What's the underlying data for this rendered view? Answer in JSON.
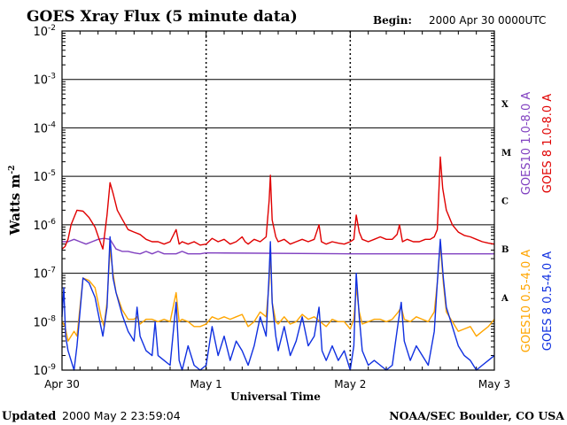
{
  "chart_data": {
    "type": "line",
    "title": "GOES Xray Flux (5 minute data)",
    "begin_label": "Begin:",
    "begin_value": "2000 Apr 30 0000UTC",
    "xlabel": "Universal Time",
    "ylabel_main": "Watts m",
    "ylabel_exp": "-2",
    "y_scale": "log",
    "ylim": [
      1e-09,
      0.01
    ],
    "xlim_hours": [
      0,
      72
    ],
    "x_ticks": [
      {
        "label": "Apr 30",
        "hour": 0
      },
      {
        "label": "May 1",
        "hour": 24
      },
      {
        "label": "May 2",
        "hour": 48
      },
      {
        "label": "May 3",
        "hour": 72
      }
    ],
    "y_ticks": [
      {
        "base": "10",
        "exp": "-2",
        "value": -2
      },
      {
        "base": "10",
        "exp": "-3",
        "value": -3
      },
      {
        "base": "10",
        "exp": "-4",
        "value": -4
      },
      {
        "base": "10",
        "exp": "-5",
        "value": -5
      },
      {
        "base": "10",
        "exp": "-6",
        "value": -6
      },
      {
        "base": "10",
        "exp": "-7",
        "value": -7
      },
      {
        "base": "10",
        "exp": "-8",
        "value": -8
      },
      {
        "base": "10",
        "exp": "-9",
        "value": -9
      }
    ],
    "class_labels": [
      {
        "label": "X",
        "value": -3.5
      },
      {
        "label": "M",
        "value": -4.5
      },
      {
        "label": "C",
        "value": -5.5
      },
      {
        "label": "B",
        "value": -6.5
      },
      {
        "label": "A",
        "value": -7.5
      }
    ],
    "series": [
      {
        "name": "GOES10 1.0-8.0 A",
        "color": "#8040c0",
        "points": [
          [
            0,
            -6.35
          ],
          [
            1,
            -6.35
          ],
          [
            2,
            -6.3
          ],
          [
            3,
            -6.35
          ],
          [
            4,
            -6.4
          ],
          [
            5,
            -6.35
          ],
          [
            6,
            -6.3
          ],
          [
            7,
            -6.28
          ],
          [
            8,
            -6.3
          ],
          [
            9,
            -6.5
          ],
          [
            10,
            -6.55
          ],
          [
            11,
            -6.55
          ],
          [
            12,
            -6.58
          ],
          [
            13,
            -6.6
          ],
          [
            14,
            -6.55
          ],
          [
            15,
            -6.6
          ],
          [
            16,
            -6.55
          ],
          [
            17,
            -6.6
          ],
          [
            18,
            -6.6
          ],
          [
            19,
            -6.6
          ],
          [
            20,
            -6.55
          ],
          [
            21,
            -6.6
          ],
          [
            22,
            -6.6
          ],
          [
            23,
            -6.6
          ],
          [
            24,
            -6.58
          ],
          [
            48,
            -6.6
          ],
          [
            72,
            -6.6
          ]
        ]
      },
      {
        "name": "GOES 8 1.0-8.0 A",
        "color": "#e00000",
        "points": [
          [
            0,
            -6.5
          ],
          [
            0.5,
            -6.45
          ],
          [
            1,
            -6.3
          ],
          [
            1.5,
            -6.0
          ],
          [
            2.5,
            -5.7
          ],
          [
            3.5,
            -5.72
          ],
          [
            4.5,
            -5.85
          ],
          [
            5.5,
            -6.05
          ],
          [
            6.2,
            -6.3
          ],
          [
            6.8,
            -6.5
          ],
          [
            7.5,
            -5.8
          ],
          [
            8,
            -5.13
          ],
          [
            8.5,
            -5.35
          ],
          [
            9.2,
            -5.7
          ],
          [
            10,
            -5.88
          ],
          [
            11,
            -6.1
          ],
          [
            12,
            -6.15
          ],
          [
            13,
            -6.2
          ],
          [
            14,
            -6.3
          ],
          [
            15,
            -6.35
          ],
          [
            16,
            -6.35
          ],
          [
            17,
            -6.4
          ],
          [
            18,
            -6.35
          ],
          [
            19,
            -6.1
          ],
          [
            19.5,
            -6.4
          ],
          [
            20,
            -6.35
          ],
          [
            21,
            -6.4
          ],
          [
            22,
            -6.35
          ],
          [
            23,
            -6.42
          ],
          [
            24,
            -6.4
          ],
          [
            25,
            -6.28
          ],
          [
            26,
            -6.35
          ],
          [
            27,
            -6.3
          ],
          [
            28,
            -6.4
          ],
          [
            29,
            -6.35
          ],
          [
            30,
            -6.25
          ],
          [
            30.5,
            -6.35
          ],
          [
            31,
            -6.4
          ],
          [
            32,
            -6.3
          ],
          [
            33,
            -6.35
          ],
          [
            34,
            -6.25
          ],
          [
            34.5,
            -5.5
          ],
          [
            34.7,
            -4.98
          ],
          [
            35,
            -5.9
          ],
          [
            35.6,
            -6.25
          ],
          [
            36,
            -6.35
          ],
          [
            37,
            -6.3
          ],
          [
            38,
            -6.4
          ],
          [
            39,
            -6.35
          ],
          [
            40,
            -6.3
          ],
          [
            41,
            -6.35
          ],
          [
            42,
            -6.3
          ],
          [
            42.8,
            -6.0
          ],
          [
            43.2,
            -6.35
          ],
          [
            44,
            -6.4
          ],
          [
            45,
            -6.35
          ],
          [
            46,
            -6.38
          ],
          [
            47,
            -6.4
          ],
          [
            48,
            -6.35
          ],
          [
            48.6,
            -6.3
          ],
          [
            49,
            -5.8
          ],
          [
            49.5,
            -6.15
          ],
          [
            50,
            -6.3
          ],
          [
            51,
            -6.35
          ],
          [
            52,
            -6.3
          ],
          [
            53,
            -6.25
          ],
          [
            54,
            -6.3
          ],
          [
            55,
            -6.3
          ],
          [
            55.8,
            -6.2
          ],
          [
            56.2,
            -6.0
          ],
          [
            56.7,
            -6.35
          ],
          [
            57.5,
            -6.3
          ],
          [
            58.5,
            -6.35
          ],
          [
            59.5,
            -6.35
          ],
          [
            60.5,
            -6.3
          ],
          [
            61.3,
            -6.3
          ],
          [
            62,
            -6.25
          ],
          [
            62.5,
            -6.1
          ],
          [
            63,
            -4.6
          ],
          [
            63.4,
            -5.25
          ],
          [
            64,
            -5.7
          ],
          [
            65,
            -6.0
          ],
          [
            66,
            -6.15
          ],
          [
            67,
            -6.22
          ],
          [
            68,
            -6.25
          ],
          [
            69,
            -6.3
          ],
          [
            70,
            -6.35
          ],
          [
            71,
            -6.38
          ],
          [
            72,
            -6.4
          ]
        ]
      },
      {
        "name": "GOES10 0.5-4.0 A",
        "color": "#ffa500",
        "points": [
          [
            0,
            -8.0
          ],
          [
            0.5,
            -8.1
          ],
          [
            1,
            -8.4
          ],
          [
            1.5,
            -8.3
          ],
          [
            2,
            -8.2
          ],
          [
            2.5,
            -8.3
          ],
          [
            3.5,
            -7.1
          ],
          [
            4.5,
            -7.15
          ],
          [
            5.5,
            -7.3
          ],
          [
            6.5,
            -7.9
          ],
          [
            7,
            -8.1
          ],
          [
            7.5,
            -7.6
          ],
          [
            8,
            -6.5
          ],
          [
            8.5,
            -7.0
          ],
          [
            9,
            -7.4
          ],
          [
            10,
            -7.75
          ],
          [
            11,
            -7.95
          ],
          [
            12,
            -7.95
          ],
          [
            12.5,
            -7.9
          ],
          [
            13,
            -8.05
          ],
          [
            14,
            -7.95
          ],
          [
            15,
            -7.95
          ],
          [
            16,
            -8.0
          ],
          [
            17,
            -7.95
          ],
          [
            18,
            -8.0
          ],
          [
            19,
            -7.4
          ],
          [
            19.5,
            -8.0
          ],
          [
            20,
            -7.95
          ],
          [
            21,
            -8.0
          ],
          [
            22,
            -8.1
          ],
          [
            23,
            -8.1
          ],
          [
            24,
            -8.05
          ],
          [
            25,
            -7.9
          ],
          [
            26,
            -7.95
          ],
          [
            27,
            -7.9
          ],
          [
            28,
            -7.95
          ],
          [
            29,
            -7.9
          ],
          [
            30,
            -7.85
          ],
          [
            31,
            -8.1
          ],
          [
            32,
            -8.0
          ],
          [
            33,
            -7.8
          ],
          [
            34,
            -7.9
          ],
          [
            34.5,
            -7.2
          ],
          [
            34.7,
            -6.5
          ],
          [
            35,
            -7.6
          ],
          [
            35.6,
            -8.0
          ],
          [
            36,
            -8.05
          ],
          [
            37,
            -7.9
          ],
          [
            38,
            -8.05
          ],
          [
            39,
            -8.0
          ],
          [
            40,
            -7.85
          ],
          [
            41,
            -7.95
          ],
          [
            42,
            -7.9
          ],
          [
            43,
            -8.0
          ],
          [
            44,
            -8.1
          ],
          [
            45,
            -7.95
          ],
          [
            46,
            -8.0
          ],
          [
            47,
            -8.0
          ],
          [
            48,
            -8.15
          ],
          [
            48.6,
            -7.95
          ],
          [
            49,
            -7.3
          ],
          [
            49.5,
            -7.8
          ],
          [
            50,
            -8.05
          ],
          [
            51,
            -8.0
          ],
          [
            52,
            -7.95
          ],
          [
            53,
            -7.95
          ],
          [
            54,
            -8.0
          ],
          [
            55,
            -7.95
          ],
          [
            56,
            -7.8
          ],
          [
            56.5,
            -7.7
          ],
          [
            57,
            -7.95
          ],
          [
            58,
            -8.0
          ],
          [
            59,
            -7.9
          ],
          [
            60,
            -7.95
          ],
          [
            61,
            -8.0
          ],
          [
            62,
            -7.8
          ],
          [
            62.5,
            -7.2
          ],
          [
            63,
            -6.4
          ],
          [
            63.5,
            -7.2
          ],
          [
            64,
            -7.8
          ],
          [
            65,
            -8.0
          ],
          [
            66,
            -8.2
          ],
          [
            67,
            -8.15
          ],
          [
            68,
            -8.1
          ],
          [
            69,
            -8.3
          ],
          [
            70,
            -8.2
          ],
          [
            71,
            -8.1
          ],
          [
            72,
            -7.95
          ]
        ]
      },
      {
        "name": "GOES 8 0.5-4.0 A",
        "color": "#1030e0",
        "points": [
          [
            0,
            -7.9
          ],
          [
            0.3,
            -7.3
          ],
          [
            0.6,
            -8.3
          ],
          [
            1,
            -8.6
          ],
          [
            1.5,
            -8.8
          ],
          [
            2,
            -9.0
          ],
          [
            2.5,
            -8.5
          ],
          [
            3,
            -7.8
          ],
          [
            3.5,
            -7.1
          ],
          [
            4.5,
            -7.2
          ],
          [
            5.5,
            -7.5
          ],
          [
            6.3,
            -8.0
          ],
          [
            6.8,
            -8.3
          ],
          [
            7.5,
            -7.7
          ],
          [
            8,
            -6.25
          ],
          [
            8.5,
            -7.1
          ],
          [
            9,
            -7.4
          ],
          [
            10,
            -7.85
          ],
          [
            11,
            -8.2
          ],
          [
            12,
            -8.4
          ],
          [
            12.5,
            -7.7
          ],
          [
            13,
            -8.3
          ],
          [
            14,
            -8.6
          ],
          [
            15,
            -8.7
          ],
          [
            15.5,
            -8.0
          ],
          [
            16,
            -8.7
          ],
          [
            17,
            -8.8
          ],
          [
            18,
            -8.9
          ],
          [
            19,
            -7.6
          ],
          [
            19.5,
            -8.8
          ],
          [
            20,
            -9.0
          ],
          [
            21,
            -8.5
          ],
          [
            22,
            -8.9
          ],
          [
            23,
            -9.0
          ],
          [
            24,
            -8.9
          ],
          [
            25,
            -8.1
          ],
          [
            26,
            -8.7
          ],
          [
            27,
            -8.3
          ],
          [
            28,
            -8.8
          ],
          [
            29,
            -8.4
          ],
          [
            30,
            -8.6
          ],
          [
            31,
            -8.9
          ],
          [
            32,
            -8.5
          ],
          [
            33,
            -7.9
          ],
          [
            34,
            -8.3
          ],
          [
            34.5,
            -7.0
          ],
          [
            34.7,
            -6.35
          ],
          [
            35,
            -7.6
          ],
          [
            35.6,
            -8.3
          ],
          [
            36,
            -8.6
          ],
          [
            37,
            -8.1
          ],
          [
            38,
            -8.7
          ],
          [
            39,
            -8.4
          ],
          [
            40,
            -7.9
          ],
          [
            41,
            -8.5
          ],
          [
            42,
            -8.3
          ],
          [
            42.8,
            -7.7
          ],
          [
            43.3,
            -8.6
          ],
          [
            44,
            -8.8
          ],
          [
            45,
            -8.5
          ],
          [
            46,
            -8.8
          ],
          [
            47,
            -8.6
          ],
          [
            48,
            -9.0
          ],
          [
            48.6,
            -8.5
          ],
          [
            49,
            -7.0
          ],
          [
            49.5,
            -7.9
          ],
          [
            50,
            -8.6
          ],
          [
            51,
            -8.9
          ],
          [
            52,
            -8.8
          ],
          [
            53,
            -8.9
          ],
          [
            54,
            -9.0
          ],
          [
            55,
            -8.9
          ],
          [
            56,
            -8.0
          ],
          [
            56.5,
            -7.6
          ],
          [
            57,
            -8.4
          ],
          [
            58,
            -8.8
          ],
          [
            59,
            -8.5
          ],
          [
            60,
            -8.7
          ],
          [
            61,
            -8.9
          ],
          [
            62,
            -8.2
          ],
          [
            62.5,
            -7.2
          ],
          [
            63,
            -6.3
          ],
          [
            63.5,
            -7.1
          ],
          [
            64,
            -7.7
          ],
          [
            65,
            -8.1
          ],
          [
            66,
            -8.5
          ],
          [
            67,
            -8.7
          ],
          [
            68,
            -8.8
          ],
          [
            69,
            -9.0
          ],
          [
            70,
            -8.9
          ],
          [
            71,
            -8.8
          ],
          [
            72,
            -8.7
          ]
        ]
      }
    ]
  },
  "footer": {
    "updated_prefix": "Updated",
    "updated_value": "2000 May  2 23:59:04",
    "credit": "NOAA/SEC Boulder, CO USA"
  }
}
